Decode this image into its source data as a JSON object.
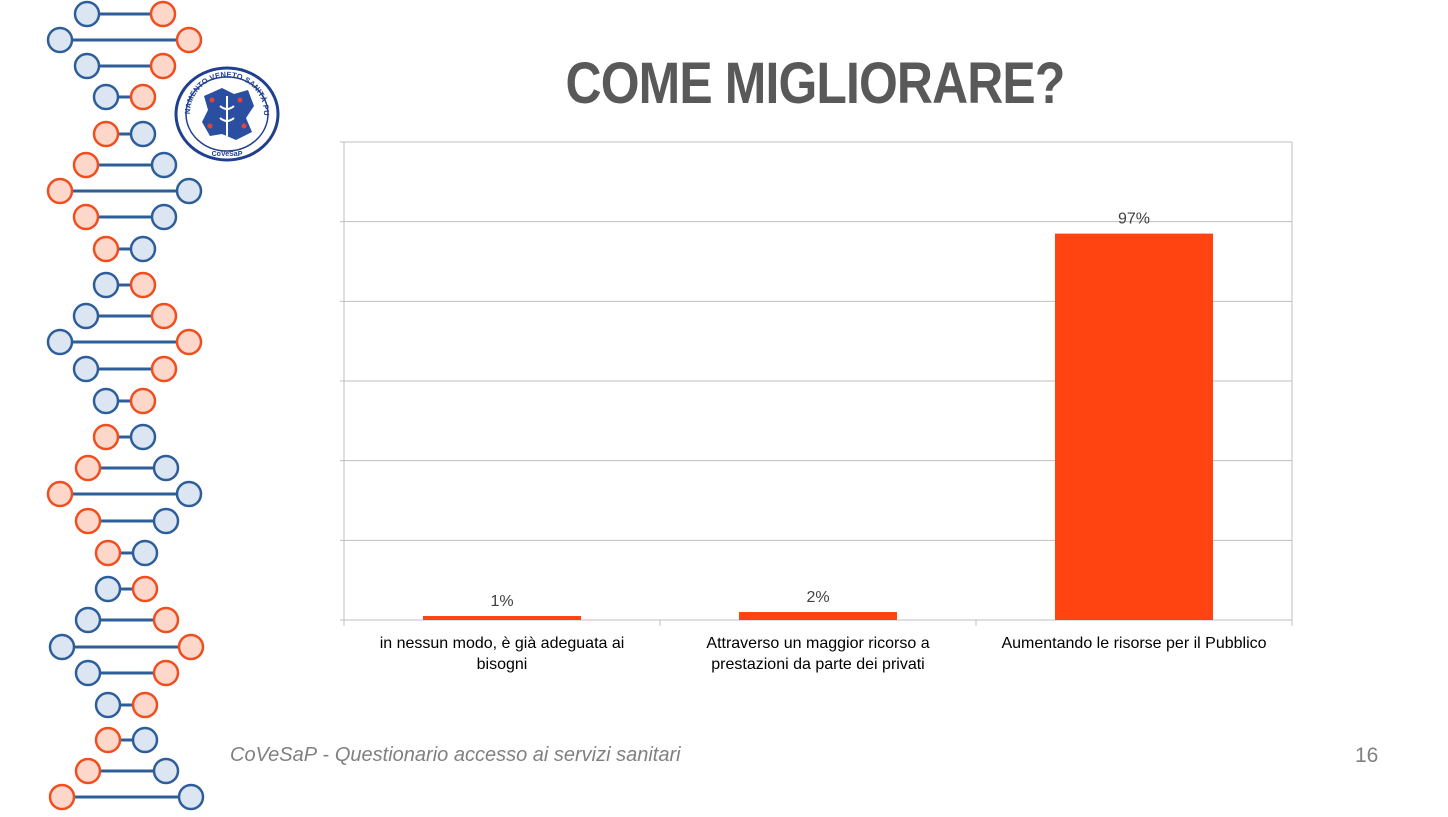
{
  "slide": {
    "title": "COME MIGLIORARE?",
    "footer_org": "CoVeSaP",
    "footer_sep": " - ",
    "footer_desc": "Questionario accesso ai servizi sanitari",
    "page_number": "16"
  },
  "logo": {
    "ring_text": "COORDINAMENTO VENETO SANITÀ PUBBLICA",
    "abbr": "CoVeSaP"
  },
  "colors": {
    "bar": "#FF4411",
    "dna_blue": "#2E5E9A",
    "dna_blue_fill": "#DCE6F2",
    "dna_orange": "#F04E1E",
    "dna_orange_fill": "#FDD7C9",
    "grid": "#BFBFBF",
    "title": "#595959"
  },
  "chart_data": {
    "type": "bar",
    "title": "",
    "xlabel": "",
    "ylabel": "",
    "categories": [
      "in nessun modo, è già adeguata ai bisogni",
      "Attraverso un maggior ricorso a prestazioni da parte dei privati",
      "Aumentando le risorse per il Pubblico"
    ],
    "values": [
      1,
      2,
      97
    ],
    "data_labels": [
      "1%",
      "2%",
      "97%"
    ],
    "ylim": [
      0,
      120
    ],
    "gridlines": [
      0,
      20,
      40,
      60,
      80,
      100,
      120
    ],
    "y_tick_labels_visible": false,
    "legend": "none"
  }
}
